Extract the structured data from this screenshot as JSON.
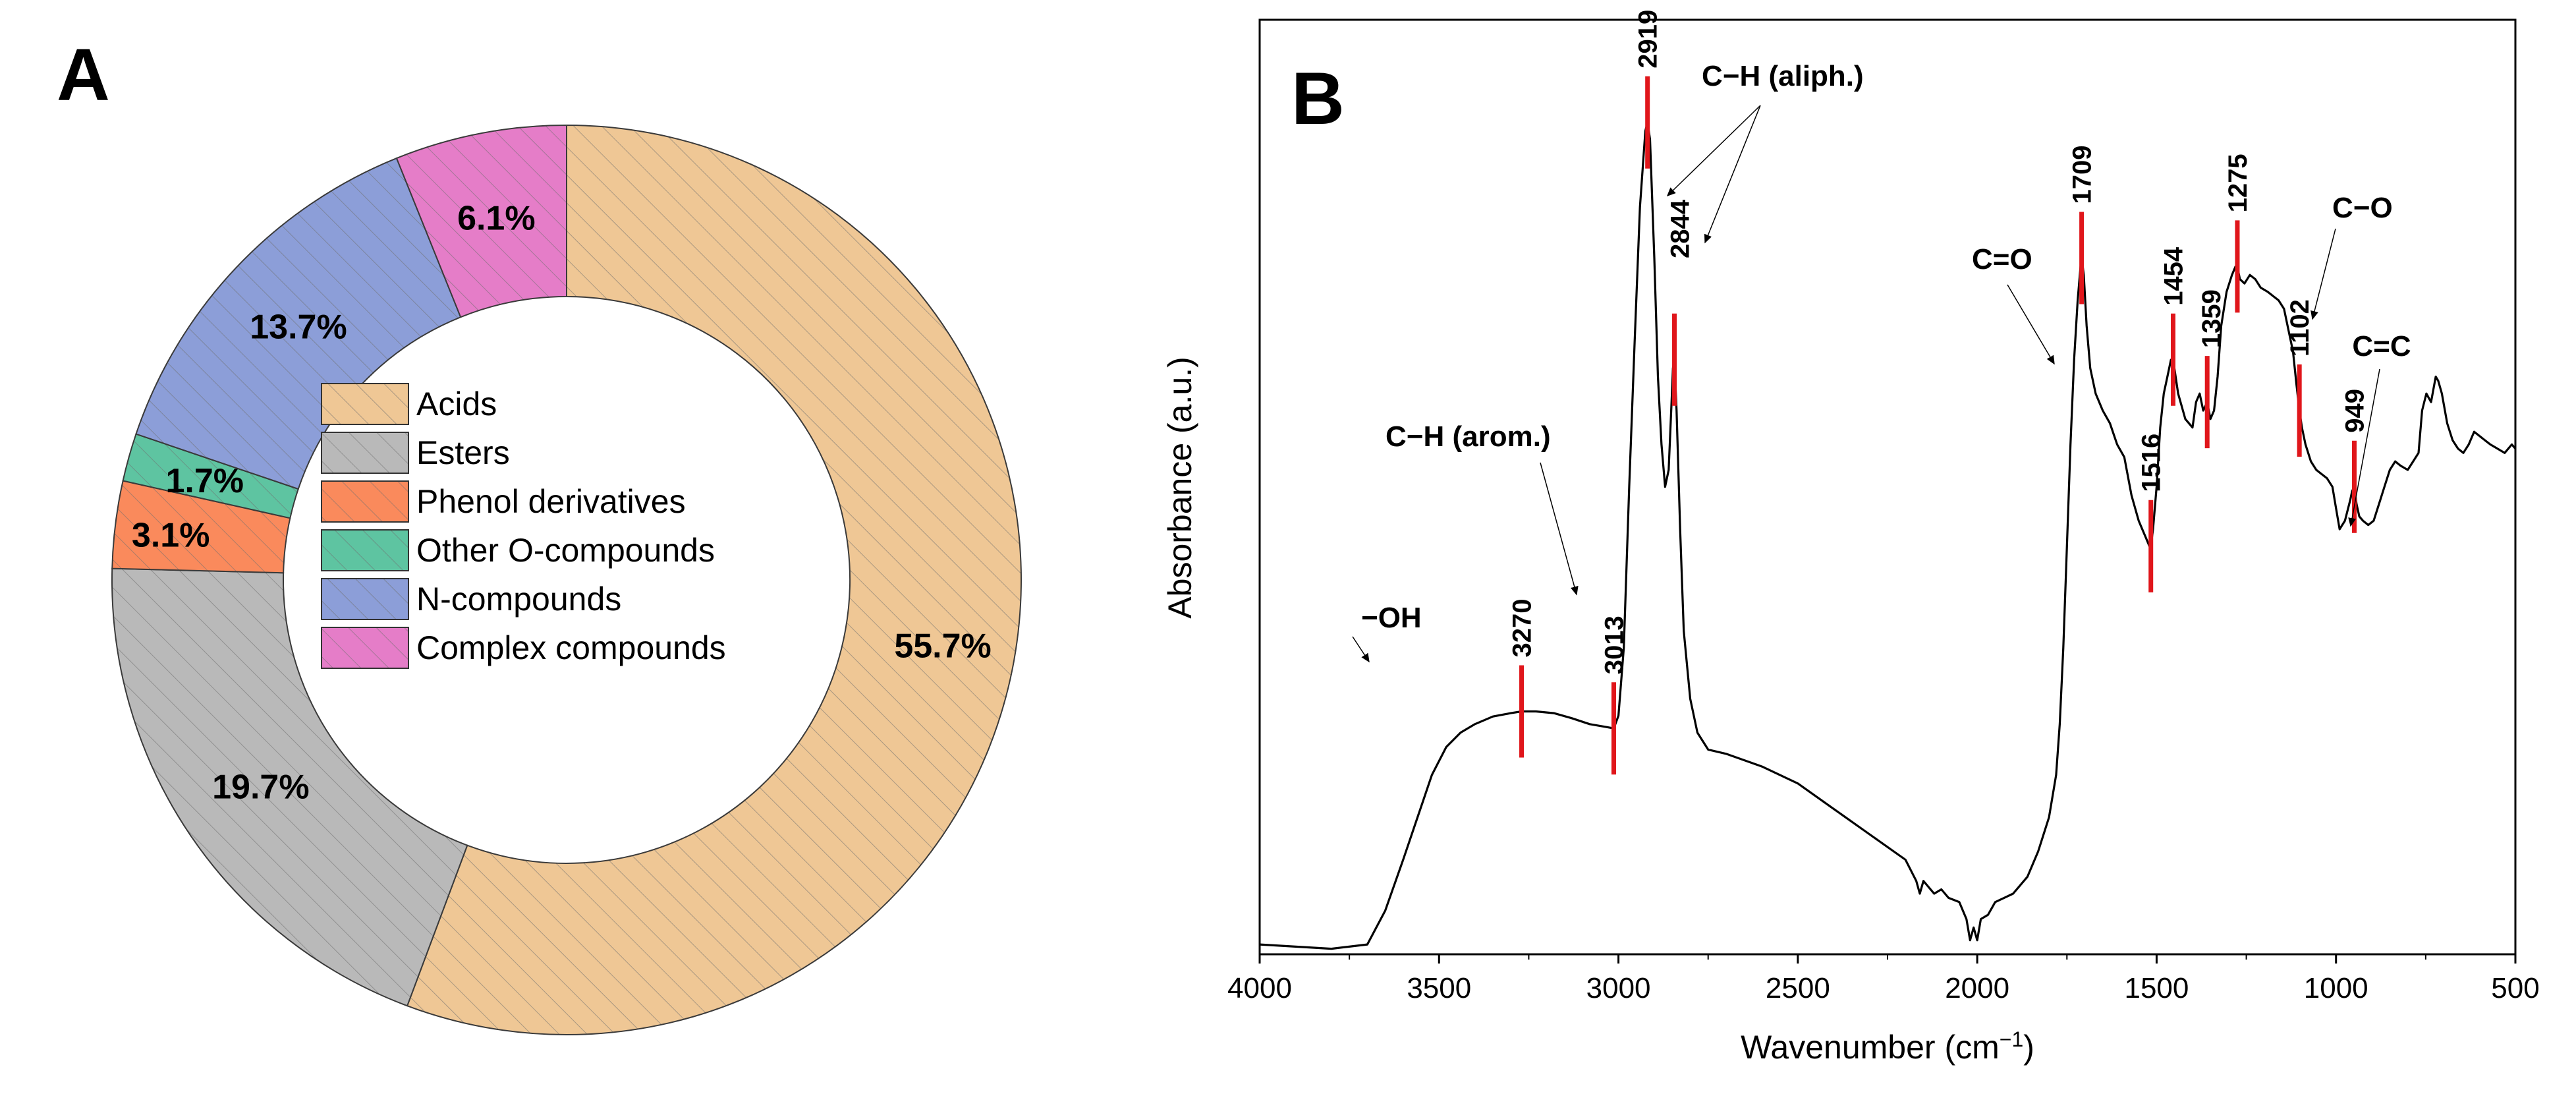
{
  "panel_a": {
    "letter": "A"
  },
  "panel_b": {
    "letter": "B"
  },
  "colors": {
    "peak_marker": "#e0161b",
    "spectrum": "#000000",
    "hatch": "#6f6f6f"
  },
  "chart_data": [
    {
      "type": "pie",
      "variant": "donut",
      "slices": [
        {
          "name": "Acids",
          "value": 55.7,
          "label": "55.7%",
          "color": "#efc795"
        },
        {
          "name": "Esters",
          "value": 19.7,
          "label": "19.7%",
          "color": "#b9b9b9"
        },
        {
          "name": "Phenol derivatives",
          "value": 3.1,
          "label": "3.1%",
          "color": "#fa8a5c"
        },
        {
          "name": "Other O-compounds",
          "value": 1.7,
          "label": "1.7%",
          "color": "#5ec4a1"
        },
        {
          "name": "N-compounds",
          "value": 13.7,
          "label": "13.7%",
          "color": "#8c9ed8"
        },
        {
          "name": "Complex compounds",
          "value": 6.1,
          "label": "6.1%",
          "color": "#e57dc8"
        }
      ],
      "legend_position": "center",
      "hatched": true
    },
    {
      "type": "line",
      "xlabel": "Wavenumber (cm",
      "xlabel_sup": "−1",
      "xlabel_end": ")",
      "ylabel": "Absorbance (a.u.)",
      "xlim": [
        4000,
        500
      ],
      "xreversed": true,
      "ylim": [
        0,
        1
      ],
      "xticks": [
        4000,
        3500,
        3000,
        2500,
        2000,
        1500,
        1000,
        500
      ],
      "xtick_labels": [
        "4000",
        "3500",
        "3000",
        "2500",
        "2000",
        "1500",
        "1000",
        "500"
      ],
      "yticks_shown": false,
      "series": [
        {
          "name": "spectrum",
          "points": [
            [
              4000,
              0.01
            ],
            [
              3800,
              0.005
            ],
            [
              3700,
              0.01
            ],
            [
              3650,
              0.05
            ],
            [
              3600,
              0.11
            ],
            [
              3560,
              0.16
            ],
            [
              3520,
              0.21
            ],
            [
              3480,
              0.243
            ],
            [
              3440,
              0.26
            ],
            [
              3400,
              0.27
            ],
            [
              3350,
              0.279
            ],
            [
              3300,
              0.283
            ],
            [
              3270,
              0.285
            ],
            [
              3230,
              0.285
            ],
            [
              3180,
              0.283
            ],
            [
              3130,
              0.277
            ],
            [
              3080,
              0.27
            ],
            [
              3040,
              0.267
            ],
            [
              3013,
              0.265
            ],
            [
              3000,
              0.28
            ],
            [
              2985,
              0.36
            ],
            [
              2970,
              0.55
            ],
            [
              2955,
              0.72
            ],
            [
              2940,
              0.88
            ],
            [
              2925,
              0.97
            ],
            [
              2919,
              0.98
            ],
            [
              2912,
              0.96
            ],
            [
              2900,
              0.82
            ],
            [
              2890,
              0.68
            ],
            [
              2880,
              0.6
            ],
            [
              2870,
              0.55
            ],
            [
              2860,
              0.57
            ],
            [
              2852,
              0.65
            ],
            [
              2848,
              0.69
            ],
            [
              2844,
              0.7
            ],
            [
              2838,
              0.64
            ],
            [
              2828,
              0.5
            ],
            [
              2818,
              0.38
            ],
            [
              2800,
              0.3
            ],
            [
              2780,
              0.26
            ],
            [
              2750,
              0.24
            ],
            [
              2700,
              0.235
            ],
            [
              2600,
              0.22
            ],
            [
              2500,
              0.2
            ],
            [
              2400,
              0.17
            ],
            [
              2300,
              0.14
            ],
            [
              2200,
              0.11
            ],
            [
              2170,
              0.085
            ],
            [
              2160,
              0.07
            ],
            [
              2150,
              0.085
            ],
            [
              2120,
              0.07
            ],
            [
              2100,
              0.075
            ],
            [
              2080,
              0.065
            ],
            [
              2050,
              0.06
            ],
            [
              2030,
              0.04
            ],
            [
              2020,
              0.015
            ],
            [
              2010,
              0.03
            ],
            [
              2000,
              0.015
            ],
            [
              1990,
              0.04
            ],
            [
              1970,
              0.045
            ],
            [
              1950,
              0.06
            ],
            [
              1900,
              0.07
            ],
            [
              1860,
              0.09
            ],
            [
              1830,
              0.12
            ],
            [
              1800,
              0.16
            ],
            [
              1780,
              0.21
            ],
            [
              1770,
              0.27
            ],
            [
              1760,
              0.36
            ],
            [
              1750,
              0.48
            ],
            [
              1740,
              0.6
            ],
            [
              1730,
              0.7
            ],
            [
              1720,
              0.77
            ],
            [
              1712,
              0.81
            ],
            [
              1709,
              0.82
            ],
            [
              1703,
              0.8
            ],
            [
              1695,
              0.74
            ],
            [
              1685,
              0.69
            ],
            [
              1670,
              0.66
            ],
            [
              1650,
              0.64
            ],
            [
              1630,
              0.625
            ],
            [
              1610,
              0.6
            ],
            [
              1590,
              0.585
            ],
            [
              1570,
              0.54
            ],
            [
              1550,
              0.51
            ],
            [
              1530,
              0.49
            ],
            [
              1520,
              0.48
            ],
            [
              1516,
              0.48
            ],
            [
              1510,
              0.5
            ],
            [
              1500,
              0.55
            ],
            [
              1490,
              0.62
            ],
            [
              1480,
              0.66
            ],
            [
              1470,
              0.68
            ],
            [
              1460,
              0.7
            ],
            [
              1454,
              0.7
            ],
            [
              1440,
              0.66
            ],
            [
              1420,
              0.63
            ],
            [
              1400,
              0.62
            ],
            [
              1390,
              0.65
            ],
            [
              1380,
              0.66
            ],
            [
              1370,
              0.64
            ],
            [
              1359,
              0.65
            ],
            [
              1350,
              0.63
            ],
            [
              1340,
              0.64
            ],
            [
              1330,
              0.68
            ],
            [
              1320,
              0.74
            ],
            [
              1305,
              0.78
            ],
            [
              1290,
              0.8
            ],
            [
              1280,
              0.81
            ],
            [
              1275,
              0.81
            ],
            [
              1268,
              0.795
            ],
            [
              1255,
              0.79
            ],
            [
              1240,
              0.8
            ],
            [
              1225,
              0.795
            ],
            [
              1210,
              0.785
            ],
            [
              1190,
              0.78
            ],
            [
              1175,
              0.775
            ],
            [
              1160,
              0.77
            ],
            [
              1145,
              0.76
            ],
            [
              1130,
              0.73
            ],
            [
              1120,
              0.71
            ],
            [
              1110,
              0.67
            ],
            [
              1102,
              0.64
            ],
            [
              1095,
              0.62
            ],
            [
              1085,
              0.6
            ],
            [
              1070,
              0.58
            ],
            [
              1055,
              0.57
            ],
            [
              1040,
              0.565
            ],
            [
              1025,
              0.56
            ],
            [
              1010,
              0.55
            ],
            [
              1000,
              0.525
            ],
            [
              990,
              0.5
            ],
            [
              975,
              0.51
            ],
            [
              960,
              0.535
            ],
            [
              955,
              0.545
            ],
            [
              949,
              0.55
            ],
            [
              943,
              0.53
            ],
            [
              935,
              0.515
            ],
            [
              925,
              0.51
            ],
            [
              910,
              0.505
            ],
            [
              895,
              0.51
            ],
            [
              880,
              0.53
            ],
            [
              865,
              0.55
            ],
            [
              850,
              0.57
            ],
            [
              835,
              0.58
            ],
            [
              820,
              0.575
            ],
            [
              800,
              0.57
            ],
            [
              785,
              0.58
            ],
            [
              770,
              0.59
            ],
            [
              760,
              0.64
            ],
            [
              748,
              0.66
            ],
            [
              735,
              0.65
            ],
            [
              722,
              0.68
            ],
            [
              715,
              0.675
            ],
            [
              705,
              0.66
            ],
            [
              690,
              0.625
            ],
            [
              675,
              0.605
            ],
            [
              660,
              0.595
            ],
            [
              645,
              0.59
            ],
            [
              630,
              0.6
            ],
            [
              615,
              0.615
            ],
            [
              600,
              0.61
            ],
            [
              585,
              0.605
            ],
            [
              570,
              0.6
            ],
            [
              550,
              0.595
            ],
            [
              530,
              0.59
            ],
            [
              510,
              0.6
            ],
            [
              500,
              0.595
            ]
          ]
        }
      ],
      "peaks": [
        {
          "x": 3270,
          "label": "3270"
        },
        {
          "x": 3013,
          "label": "3013"
        },
        {
          "x": 2919,
          "label": "2919"
        },
        {
          "x": 2844,
          "label": "2844"
        },
        {
          "x": 1709,
          "label": "1709"
        },
        {
          "x": 1516,
          "label": "1516"
        },
        {
          "x": 1454,
          "label": "1454"
        },
        {
          "x": 1359,
          "label": "1359"
        },
        {
          "x": 1275,
          "label": "1275"
        },
        {
          "x": 1102,
          "label": "1102"
        },
        {
          "x": 949,
          "label": "949"
        }
      ],
      "annotations": [
        {
          "text": "−OH"
        },
        {
          "text": "C−H (arom.)"
        },
        {
          "text": "C−H (aliph.)"
        },
        {
          "text": "C=O"
        },
        {
          "text": "C−O"
        },
        {
          "text": "C=C"
        }
      ]
    }
  ]
}
